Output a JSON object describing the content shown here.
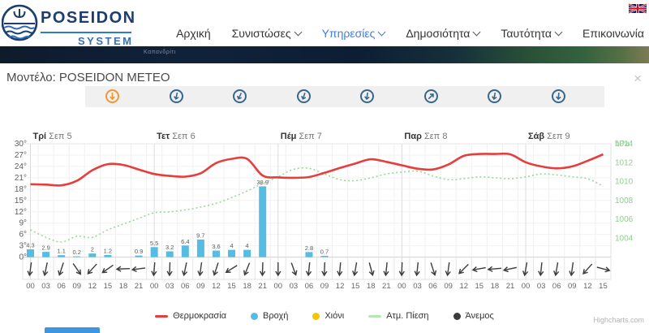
{
  "header": {
    "logo": {
      "title": "POSEIDON",
      "subtitle": "SYSTEM"
    },
    "nav": [
      {
        "label": "Αρχική",
        "dropdown": false,
        "active": false
      },
      {
        "label": "Συνιστώσες",
        "dropdown": true,
        "active": false
      },
      {
        "label": "Υπηρεσίες",
        "dropdown": true,
        "active": true
      },
      {
        "label": "Δημοσιότητα",
        "dropdown": true,
        "active": false
      },
      {
        "label": "Ταυτότητα",
        "dropdown": true,
        "active": false
      },
      {
        "label": "Επικοινωνία",
        "dropdown": false,
        "active": false
      }
    ],
    "language_flag": "uk-flag"
  },
  "map_strip": {
    "label": "Καπανδρίτι"
  },
  "modal": {
    "title": "Μοντέλο: POSEIDON METEO",
    "close_label": "×"
  },
  "model_icons": {
    "active_index": 0,
    "active_color": "#f5952f",
    "color": "#39678c",
    "rotations": [
      0,
      12,
      25,
      18,
      8,
      225,
      10,
      5
    ]
  },
  "chart_data": {
    "type": "meteogram (line + bar + dotted line + wind arrows)",
    "days": [
      {
        "name": "Τρί",
        "date": "Σεπ 5"
      },
      {
        "name": "Τετ",
        "date": "Σεπ 6"
      },
      {
        "name": "Πέμ",
        "date": "Σεπ 7"
      },
      {
        "name": "Παρ",
        "date": "Σεπ 8"
      },
      {
        "name": "Σάβ",
        "date": "Σεπ 9"
      }
    ],
    "hours": [
      "00",
      "03",
      "06",
      "09",
      "12",
      "15",
      "18",
      "21",
      "00",
      "03",
      "06",
      "09",
      "12",
      "15",
      "18",
      "21",
      "00",
      "03",
      "06",
      "09",
      "12",
      "15",
      "18",
      "21",
      "00",
      "03",
      "06",
      "09",
      "12",
      "15",
      "18",
      "21",
      "00",
      "03",
      "06",
      "09",
      "12",
      "15"
    ],
    "y_left": {
      "unit": "°",
      "min": 0,
      "max": 30,
      "step": 3
    },
    "y_right": {
      "unit": "hPa",
      "min": 1004,
      "max": 1016,
      "step": 2,
      "labels": [
        "hPa",
        "1014",
        "1012",
        "1010",
        "1008",
        "1006",
        "1004"
      ]
    },
    "series": [
      {
        "name": "Θερμοκρασία",
        "type": "spline",
        "color": "#e73d3d",
        "values": [
          19.3,
          19.2,
          19.0,
          20.2,
          23.0,
          24.6,
          24.4,
          23.2,
          22.0,
          21.5,
          21.3,
          22.2,
          24.9,
          26.0,
          26.0,
          21.6,
          21.1,
          21.0,
          21.2,
          22.3,
          23.6,
          24.8,
          25.9,
          25.2,
          24.3,
          23.4,
          23.2,
          24.5,
          26.8,
          27.3,
          27.3,
          27.2,
          25.1,
          24.0,
          23.5,
          24.0,
          25.5,
          27.2
        ]
      },
      {
        "name": "Βροχή",
        "type": "bar",
        "color": "#56bce2",
        "values": [
          4.3,
          2.9,
          1.1,
          0.2,
          2,
          1.2,
          0,
          0.9,
          5.5,
          3.2,
          6.4,
          9.7,
          3.6,
          4,
          4,
          38.9,
          0,
          0,
          2.8,
          0.7,
          0,
          0,
          0,
          0,
          0,
          0,
          0,
          0,
          0,
          0,
          0,
          0,
          0,
          0,
          0,
          0,
          0,
          0
        ]
      },
      {
        "name": "Χιόνι",
        "type": "bar",
        "color": "#f5c600",
        "values": [
          0,
          0,
          0,
          0,
          0,
          0,
          0,
          0,
          0,
          0,
          0,
          0,
          0,
          0,
          0,
          0,
          0,
          0,
          0,
          0,
          0,
          0,
          0,
          0,
          0,
          0,
          0,
          0,
          0,
          0,
          0,
          0,
          0,
          0,
          0,
          0,
          0,
          0
        ]
      },
      {
        "name": "Ατμ. Πίεση",
        "type": "dotted-spline",
        "color": "#97da97",
        "values": [
          1006.9,
          1006.1,
          1005.6,
          1006.2,
          1006.1,
          1006.9,
          1007.5,
          1008.1,
          1008.7,
          1008.8,
          1009.0,
          1009.3,
          1009.7,
          1010.3,
          1011.0,
          1011.8,
          1012.5,
          1013.3,
          1013.4,
          1012.8,
          1012.2,
          1012.1,
          1012.4,
          1012.8,
          1013.0,
          1013.1,
          1012.6,
          1012.2,
          1012.3,
          1012.5,
          1012.4,
          1012.3,
          1012.5,
          1012.8,
          1012.7,
          1012.5,
          1012.3,
          1011.5
        ]
      },
      {
        "name": "Άνεμος",
        "type": "wind-arrows",
        "color": "#3c3c3c",
        "rotations": [
          8,
          12,
          18,
          -35,
          42,
          55,
          88,
          82,
          5,
          2,
          12,
          8,
          18,
          58,
          22,
          2,
          0,
          -20,
          6,
          2,
          5,
          10,
          -15,
          6,
          2,
          6,
          -18,
          8,
          45,
          80,
          85,
          78,
          10,
          6,
          10,
          8,
          42,
          -75
        ]
      }
    ],
    "legend": [
      {
        "label": "Θερμοκρασία",
        "color": "#e73d3d",
        "marker": "line"
      },
      {
        "label": "Βροχή",
        "color": "#56bce2",
        "marker": "dot"
      },
      {
        "label": "Χιόνι",
        "color": "#f5c600",
        "marker": "dot"
      },
      {
        "label": "Ατμ. Πίεση",
        "color": "#b5e6b5",
        "marker": "line"
      },
      {
        "label": "Άνεμος",
        "color": "#3c3c3c",
        "marker": "dot"
      }
    ],
    "credit": "Highcharts.com"
  }
}
